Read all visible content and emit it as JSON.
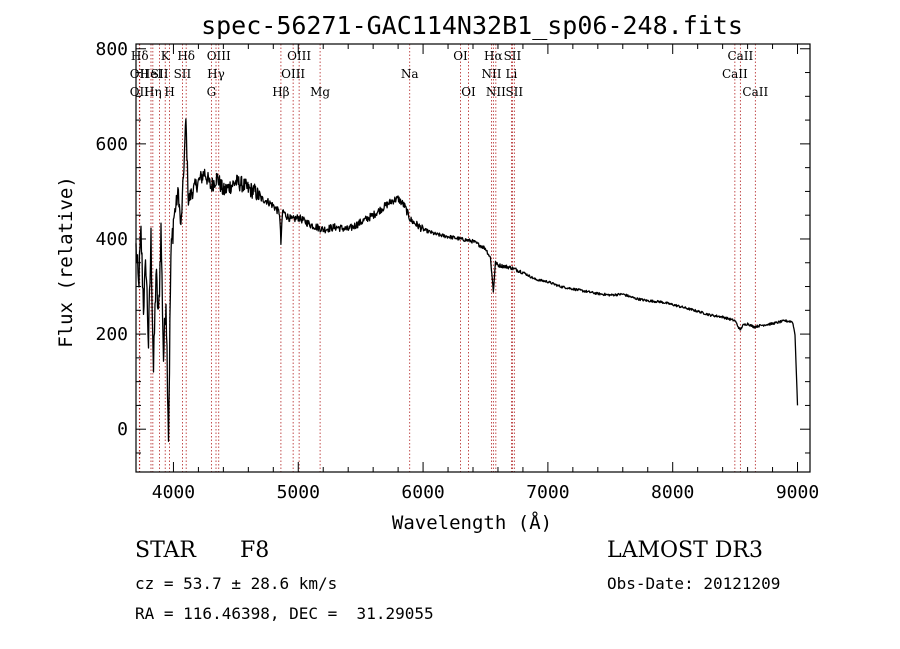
{
  "chart_data": {
    "type": "line",
    "title": "spec-56271-GAC114N32B1_sp06-248.fits",
    "xlabel": "Wavelength (Å)",
    "ylabel": "Flux (relative)",
    "xlim": [
      3700,
      9100
    ],
    "ylim": [
      -90,
      810
    ],
    "x_ticks": [
      4000,
      5000,
      6000,
      7000,
      8000,
      9000
    ],
    "y_ticks": [
      0,
      200,
      400,
      600,
      800
    ],
    "series": [
      {
        "name": "spectrum",
        "color": "#000000",
        "x": [
          3700,
          3720,
          3740,
          3760,
          3780,
          3800,
          3820,
          3840,
          3860,
          3880,
          3900,
          3920,
          3940,
          3960,
          3980,
          4000,
          4020,
          4040,
          4060,
          4080,
          4100,
          4120,
          4150,
          4200,
          4250,
          4300,
          4350,
          4400,
          4450,
          4500,
          4550,
          4600,
          4650,
          4700,
          4750,
          4800,
          4850,
          4861,
          4875,
          4900,
          4950,
          5000,
          5100,
          5200,
          5300,
          5400,
          5500,
          5600,
          5700,
          5750,
          5800,
          5850,
          5900,
          5950,
          6000,
          6100,
          6200,
          6300,
          6400,
          6500,
          6540,
          6563,
          6580,
          6600,
          6700,
          6800,
          6900,
          7000,
          7100,
          7200,
          7300,
          7400,
          7500,
          7600,
          7700,
          7800,
          7900,
          8000,
          8100,
          8200,
          8300,
          8400,
          8500,
          8540,
          8560,
          8600,
          8650,
          8700,
          8800,
          8900,
          8960,
          8980,
          9000
        ],
        "y": [
          380,
          300,
          410,
          260,
          350,
          180,
          400,
          120,
          330,
          230,
          420,
          150,
          280,
          -10,
          360,
          440,
          470,
          500,
          420,
          530,
          650,
          480,
          500,
          520,
          540,
          510,
          530,
          500,
          510,
          520,
          515,
          505,
          500,
          485,
          480,
          470,
          455,
          390,
          460,
          450,
          440,
          445,
          430,
          420,
          425,
          420,
          435,
          450,
          470,
          480,
          485,
          470,
          440,
          430,
          420,
          410,
          405,
          400,
          395,
          380,
          360,
          290,
          350,
          345,
          340,
          330,
          315,
          310,
          300,
          295,
          290,
          285,
          282,
          284,
          275,
          270,
          268,
          262,
          255,
          248,
          240,
          236,
          228,
          208,
          218,
          222,
          215,
          218,
          222,
          228,
          226,
          200,
          50
        ]
      }
    ],
    "line_markers": [
      {
        "label": "Hδ",
        "wavelength": 3730,
        "row": 1
      },
      {
        "label": "OII",
        "wavelength": 3727,
        "row": 2
      },
      {
        "label": "OII",
        "wavelength": 3727,
        "row": 3
      },
      {
        "label": "K",
        "wavelength": 3934,
        "row": 1
      },
      {
        "label": "HeI",
        "wavelength": 3820,
        "row": 2
      },
      {
        "label": "Hη",
        "wavelength": 3835,
        "row": 3
      },
      {
        "label": "SII",
        "wavelength": 3889,
        "row": 2
      },
      {
        "label": "H",
        "wavelength": 3969,
        "row": 3
      },
      {
        "label": "Hδ",
        "wavelength": 4102,
        "row": 1
      },
      {
        "label": "SII",
        "wavelength": 4072,
        "row": 2
      },
      {
        "label": "OIII",
        "wavelength": 4363,
        "row": 1
      },
      {
        "label": "Hγ",
        "wavelength": 4341,
        "row": 2
      },
      {
        "label": "G",
        "wavelength": 4304,
        "row": 3
      },
      {
        "label": "OIII",
        "wavelength": 5007,
        "row": 1
      },
      {
        "label": "OIII",
        "wavelength": 4959,
        "row": 2
      },
      {
        "label": "Hβ",
        "wavelength": 4861,
        "row": 3
      },
      {
        "label": "Mg",
        "wavelength": 5175,
        "row": 3
      },
      {
        "label": "Na",
        "wavelength": 5893,
        "row": 2
      },
      {
        "label": "OI",
        "wavelength": 6300,
        "row": 1
      },
      {
        "label": "OI",
        "wavelength": 6364,
        "row": 3
      },
      {
        "label": "Hα",
        "wavelength": 6563,
        "row": 1
      },
      {
        "label": "NII",
        "wavelength": 6548,
        "row": 2
      },
      {
        "label": "NII",
        "wavelength": 6583,
        "row": 3
      },
      {
        "label": "SII",
        "wavelength": 6716,
        "row": 1
      },
      {
        "label": "Li",
        "wavelength": 6708,
        "row": 2
      },
      {
        "label": "SII",
        "wavelength": 6731,
        "row": 3
      },
      {
        "label": "CaII",
        "wavelength": 8542,
        "row": 1
      },
      {
        "label": "CaII",
        "wavelength": 8498,
        "row": 2
      },
      {
        "label": "CaII",
        "wavelength": 8662,
        "row": 3
      }
    ],
    "marker_color": "#b22222"
  },
  "info": {
    "class_label": "STAR",
    "subclass": "F8",
    "survey": "LAMOST DR3",
    "cz": "cz = 53.7 ± 28.6 km/s",
    "obs_date": "Obs-Date: 20121209",
    "coords": "RA = 116.46398, DEC =  31.29055"
  }
}
